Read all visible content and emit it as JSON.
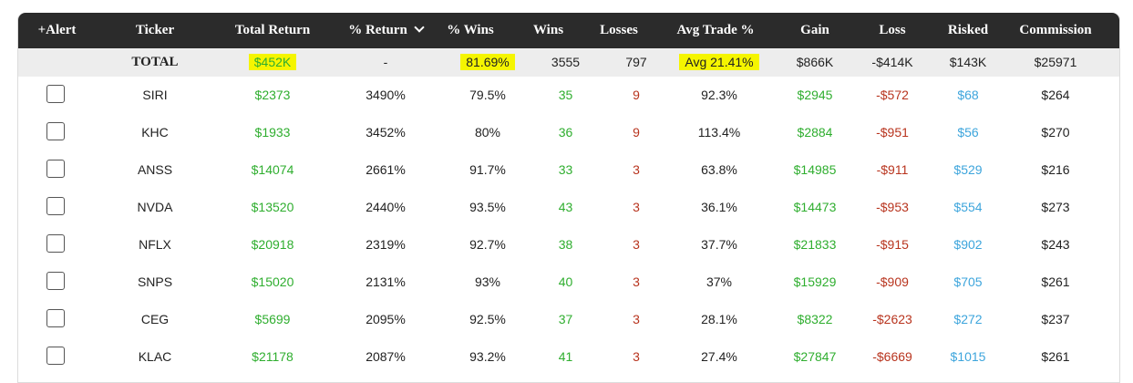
{
  "header": {
    "alert": "+Alert",
    "ticker": "Ticker",
    "total_return": "Total Return",
    "pct_return": "% Return",
    "pct_wins": "% Wins",
    "wins": "Wins",
    "losses": "Losses",
    "avg_trade": "Avg Trade %",
    "gain": "Gain",
    "loss": "Loss",
    "risked": "Risked",
    "commission": "Commission"
  },
  "total": {
    "label": "TOTAL",
    "total_return": "$452K",
    "pct_return": "-",
    "pct_wins": "81.69%",
    "wins": "3555",
    "losses": "797",
    "avg_trade": "Avg 21.41%",
    "gain": "$866K",
    "loss": "-$414K",
    "risked": "$143K",
    "commission": "$25971"
  },
  "rows": [
    {
      "ticker": "SIRI",
      "total_return": "$2373",
      "pct_return": "3490%",
      "pct_wins": "79.5%",
      "wins": "35",
      "losses": "9",
      "avg_trade": "92.3%",
      "gain": "$2945",
      "loss": "-$572",
      "risked": "$68",
      "commission": "$264"
    },
    {
      "ticker": "KHC",
      "total_return": "$1933",
      "pct_return": "3452%",
      "pct_wins": "80%",
      "wins": "36",
      "losses": "9",
      "avg_trade": "113.4%",
      "gain": "$2884",
      "loss": "-$951",
      "risked": "$56",
      "commission": "$270"
    },
    {
      "ticker": "ANSS",
      "total_return": "$14074",
      "pct_return": "2661%",
      "pct_wins": "91.7%",
      "wins": "33",
      "losses": "3",
      "avg_trade": "63.8%",
      "gain": "$14985",
      "loss": "-$911",
      "risked": "$529",
      "commission": "$216"
    },
    {
      "ticker": "NVDA",
      "total_return": "$13520",
      "pct_return": "2440%",
      "pct_wins": "93.5%",
      "wins": "43",
      "losses": "3",
      "avg_trade": "36.1%",
      "gain": "$14473",
      "loss": "-$953",
      "risked": "$554",
      "commission": "$273"
    },
    {
      "ticker": "NFLX",
      "total_return": "$20918",
      "pct_return": "2319%",
      "pct_wins": "92.7%",
      "wins": "38",
      "losses": "3",
      "avg_trade": "37.7%",
      "gain": "$21833",
      "loss": "-$915",
      "risked": "$902",
      "commission": "$243"
    },
    {
      "ticker": "SNPS",
      "total_return": "$15020",
      "pct_return": "2131%",
      "pct_wins": "93%",
      "wins": "40",
      "losses": "3",
      "avg_trade": "37%",
      "gain": "$15929",
      "loss": "-$909",
      "risked": "$705",
      "commission": "$261"
    },
    {
      "ticker": "CEG",
      "total_return": "$5699",
      "pct_return": "2095%",
      "pct_wins": "92.5%",
      "wins": "37",
      "losses": "3",
      "avg_trade": "28.1%",
      "gain": "$8322",
      "loss": "-$2623",
      "risked": "$272",
      "commission": "$237"
    },
    {
      "ticker": "KLAC",
      "total_return": "$21178",
      "pct_return": "2087%",
      "pct_wins": "93.2%",
      "wins": "41",
      "losses": "3",
      "avg_trade": "27.4%",
      "gain": "$27847",
      "loss": "-$6669",
      "risked": "$1015",
      "commission": "$261"
    }
  ],
  "colors": {
    "header_bg": "#2b2b2b",
    "total_bg": "#ededed",
    "highlight": "#f5f500",
    "positive": "#2fae2f",
    "negative": "#b8341e",
    "risked": "#3da5dc"
  }
}
